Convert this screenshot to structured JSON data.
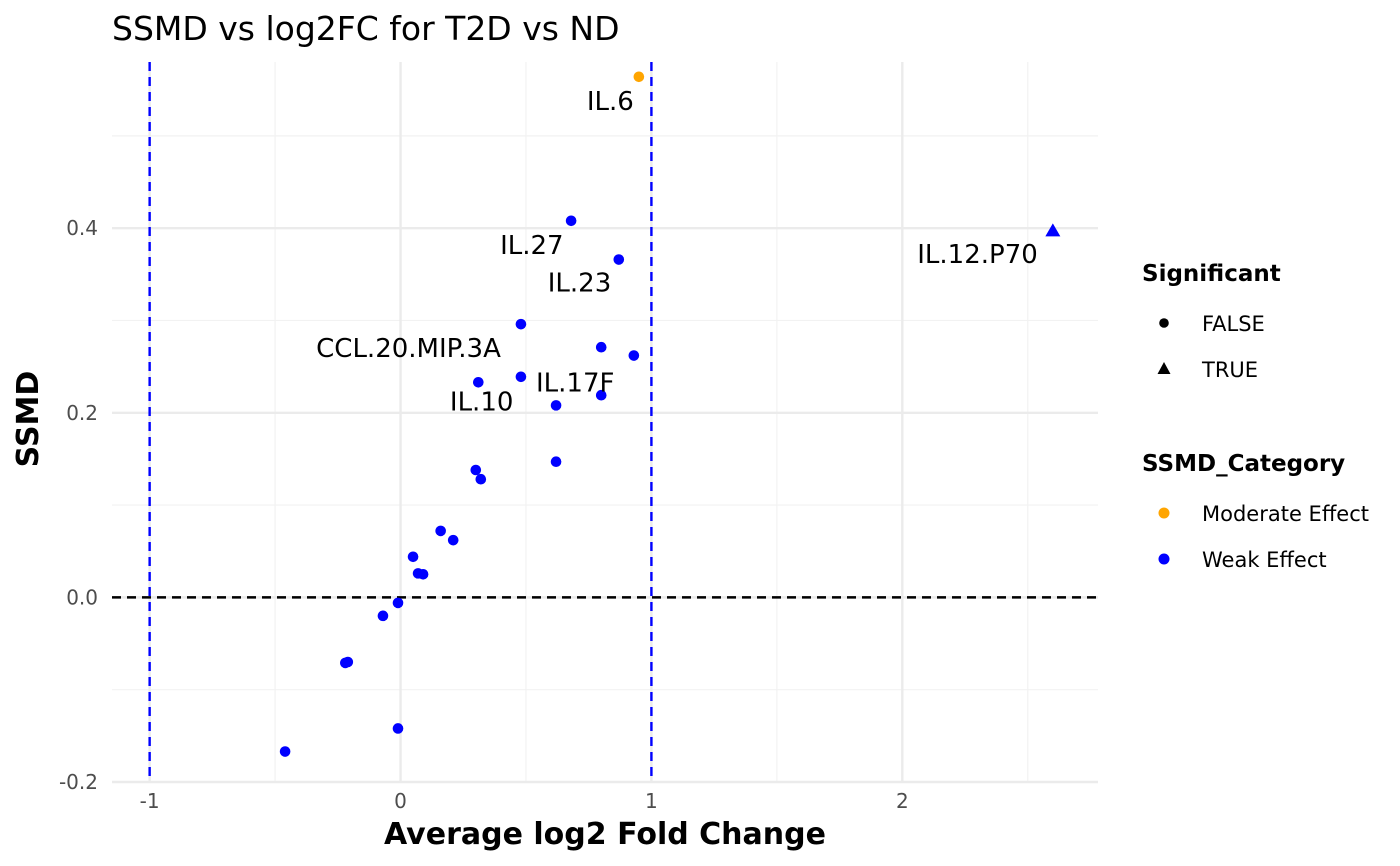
{
  "chart_data": {
    "type": "scatter",
    "title": "SSMD vs log2FC for T2D vs ND",
    "xlabel": "Average log2 Fold Change",
    "ylabel": "SSMD",
    "xlim": [
      -1.15,
      2.78
    ],
    "ylim": [
      -0.2,
      0.58
    ],
    "x_ticks": [
      -1,
      0,
      1,
      2
    ],
    "x_tick_labels": [
      "-1",
      "0",
      "1",
      "2"
    ],
    "y_ticks": [
      -0.2,
      0.0,
      0.2,
      0.4
    ],
    "y_tick_labels": [
      "-0.2",
      "0.0",
      "0.2",
      "0.4"
    ],
    "grid": true,
    "reference_lines": [
      {
        "orientation": "vertical",
        "value": -1,
        "color": "#0000ff",
        "style": "dashed"
      },
      {
        "orientation": "vertical",
        "value": 1,
        "color": "#0000ff",
        "style": "dashed"
      },
      {
        "orientation": "horizontal",
        "value": 0,
        "color": "#000000",
        "style": "dashed"
      }
    ],
    "colors": {
      "Moderate Effect": "#ffa500",
      "Weak Effect": "#0000ff"
    },
    "points": [
      {
        "x": 0.95,
        "y": 0.564,
        "category": "Moderate Effect",
        "significant": false
      },
      {
        "x": 2.6,
        "y": 0.397,
        "category": "Weak Effect",
        "significant": true
      },
      {
        "x": 0.68,
        "y": 0.408,
        "category": "Weak Effect",
        "significant": false
      },
      {
        "x": 0.87,
        "y": 0.366,
        "category": "Weak Effect",
        "significant": false
      },
      {
        "x": 0.48,
        "y": 0.296,
        "category": "Weak Effect",
        "significant": false
      },
      {
        "x": 0.8,
        "y": 0.271,
        "category": "Weak Effect",
        "significant": false
      },
      {
        "x": 0.93,
        "y": 0.262,
        "category": "Weak Effect",
        "significant": false
      },
      {
        "x": 0.48,
        "y": 0.239,
        "category": "Weak Effect",
        "significant": false
      },
      {
        "x": 0.31,
        "y": 0.233,
        "category": "Weak Effect",
        "significant": false
      },
      {
        "x": 0.8,
        "y": 0.219,
        "category": "Weak Effect",
        "significant": false
      },
      {
        "x": 0.62,
        "y": 0.208,
        "category": "Weak Effect",
        "significant": false
      },
      {
        "x": 0.62,
        "y": 0.147,
        "category": "Weak Effect",
        "significant": false
      },
      {
        "x": 0.3,
        "y": 0.138,
        "category": "Weak Effect",
        "significant": false
      },
      {
        "x": 0.32,
        "y": 0.128,
        "category": "Weak Effect",
        "significant": false
      },
      {
        "x": 0.16,
        "y": 0.072,
        "category": "Weak Effect",
        "significant": false
      },
      {
        "x": 0.21,
        "y": 0.062,
        "category": "Weak Effect",
        "significant": false
      },
      {
        "x": 0.05,
        "y": 0.044,
        "category": "Weak Effect",
        "significant": false
      },
      {
        "x": 0.07,
        "y": 0.026,
        "category": "Weak Effect",
        "significant": false
      },
      {
        "x": 0.09,
        "y": 0.025,
        "category": "Weak Effect",
        "significant": false
      },
      {
        "x": -0.01,
        "y": -0.006,
        "category": "Weak Effect",
        "significant": false
      },
      {
        "x": -0.07,
        "y": -0.02,
        "category": "Weak Effect",
        "significant": false
      },
      {
        "x": -0.21,
        "y": -0.07,
        "category": "Weak Effect",
        "significant": false
      },
      {
        "x": -0.22,
        "y": -0.071,
        "category": "Weak Effect",
        "significant": false
      },
      {
        "x": -0.01,
        "y": -0.142,
        "category": "Weak Effect",
        "significant": false
      },
      {
        "x": -0.46,
        "y": -0.167,
        "category": "Weak Effect",
        "significant": false
      }
    ],
    "annotations": [
      {
        "text": "IL.6",
        "x": 0.93,
        "y": 0.538,
        "anchor": "end"
      },
      {
        "text": "IL.12.P70",
        "x": 2.54,
        "y": 0.372,
        "anchor": "end"
      },
      {
        "text": "IL.27",
        "x": 0.65,
        "y": 0.382,
        "anchor": "end"
      },
      {
        "text": "IL.23",
        "x": 0.84,
        "y": 0.341,
        "anchor": "end"
      },
      {
        "text": "CCL.20.MIP.3A",
        "x": 0.4,
        "y": 0.27,
        "anchor": "end"
      },
      {
        "text": "IL.17F",
        "x": 0.54,
        "y": 0.233,
        "anchor": "start"
      },
      {
        "text": "IL.10",
        "x": 0.45,
        "y": 0.212,
        "anchor": "end"
      }
    ],
    "legends": [
      {
        "title": "Significant",
        "kind": "shape",
        "items": [
          {
            "label": "FALSE",
            "shape": "circle"
          },
          {
            "label": "TRUE",
            "shape": "triangle"
          }
        ]
      },
      {
        "title": "SSMD_Category",
        "kind": "color",
        "items": [
          {
            "label": "Moderate Effect",
            "color": "#ffa500"
          },
          {
            "label": "Weak Effect",
            "color": "#0000ff"
          }
        ]
      }
    ],
    "legend_position": "right"
  }
}
